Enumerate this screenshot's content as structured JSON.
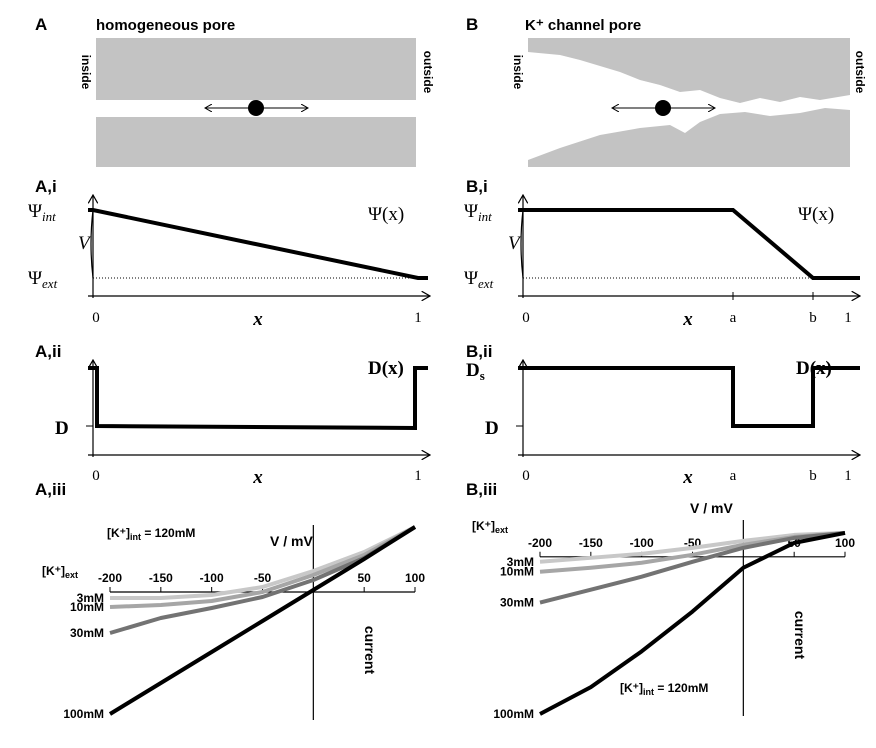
{
  "panels": {
    "A": {
      "label": "A",
      "title": "homogeneous pore",
      "inside": "inside",
      "outside": "outside"
    },
    "B": {
      "label": "B",
      "title": "K⁺ channel pore",
      "inside": "inside",
      "outside": "outside"
    },
    "Ai": {
      "label": "A,i",
      "psi_int": {
        "symbol": "Ψ",
        "sub": "int"
      },
      "psi_ext": {
        "symbol": "Ψ",
        "sub": "ext"
      },
      "V": "V",
      "func": "Ψ(x)",
      "x0": "0",
      "x": "x",
      "x1": "1"
    },
    "Bi": {
      "label": "B,i",
      "psi_int": {
        "symbol": "Ψ",
        "sub": "int"
      },
      "psi_ext": {
        "symbol": "Ψ",
        "sub": "ext"
      },
      "V": "V",
      "func": "Ψ(x)",
      "x0": "0",
      "x": "x",
      "xa": "a",
      "xb": "b",
      "x1": "1"
    },
    "Aii": {
      "label": "A,ii",
      "func": "D(x)",
      "D": "D",
      "x0": "0",
      "x": "x",
      "x1": "1"
    },
    "Bii": {
      "label": "B,ii",
      "Ds": {
        "symbol": "D",
        "sub": "s"
      },
      "func": "D(x)",
      "D": "D",
      "x0": "0",
      "x": "x",
      "xa": "a",
      "xb": "b",
      "x1": "1"
    }
  },
  "chart_data": [
    {
      "type": "line",
      "label": "A,iii",
      "x_label": "V / mV",
      "y_label": "current",
      "annotation_int": {
        "pre": "[K⁺]",
        "sub": "int",
        "post": " = 120mM"
      },
      "annotation_ext": {
        "pre": "[K⁺]",
        "sub": "ext"
      },
      "x": [
        -200,
        -150,
        -100,
        -50,
        0,
        50,
        100
      ],
      "xlim": [
        -200,
        100
      ],
      "xticks": [
        -200,
        -150,
        -100,
        -50,
        50,
        100
      ],
      "ylim": [
        -1.28,
        0.67
      ],
      "series": [
        {
          "name": "3mM",
          "color": "#c8c8c8",
          "values": [
            -0.06,
            -0.06,
            -0.03,
            0.05,
            0.21,
            0.4,
            0.65
          ]
        },
        {
          "name": "10mM",
          "color": "#a6a6a6",
          "values": [
            -0.15,
            -0.13,
            -0.09,
            0,
            0.17,
            0.37,
            0.65
          ]
        },
        {
          "name": "30mM",
          "color": "#737373",
          "values": [
            -0.41,
            -0.26,
            -0.16,
            -0.05,
            0.12,
            0.34,
            0.65
          ]
        },
        {
          "name": "100mM",
          "color": "#000000",
          "values": [
            -1.22,
            -0.91,
            -0.6,
            -0.29,
            0.02,
            0.33,
            0.65
          ]
        }
      ]
    },
    {
      "type": "line",
      "label": "B,iii",
      "x_label": "V / mV",
      "y_label": "current",
      "annotation_int": {
        "pre": "[K⁺]",
        "sub": "int",
        "post": " = 120mM"
      },
      "annotation_ext": {
        "pre": "[K⁺]",
        "sub": "ext"
      },
      "x": [
        -200,
        -150,
        -100,
        -50,
        0,
        50,
        100
      ],
      "xlim": [
        -200,
        100
      ],
      "xticks": [
        -200,
        -150,
        -100,
        -50,
        50,
        100
      ],
      "ylim": [
        -1.6,
        0.37
      ],
      "series": [
        {
          "name": "3mM",
          "color": "#c8c8c8",
          "values": [
            -0.05,
            -0.01,
            0.03,
            0.09,
            0.16,
            0.22,
            0.24
          ]
        },
        {
          "name": "10mM",
          "color": "#a6a6a6",
          "values": [
            -0.15,
            -0.11,
            -0.06,
            0.02,
            0.12,
            0.2,
            0.24
          ]
        },
        {
          "name": "30mM",
          "color": "#737373",
          "values": [
            -0.46,
            -0.33,
            -0.2,
            -0.05,
            0.09,
            0.19,
            0.24
          ]
        },
        {
          "name": "100mM",
          "color": "#000000",
          "values": [
            -1.58,
            -1.31,
            -0.95,
            -0.55,
            -0.11,
            0.14,
            0.24
          ]
        }
      ]
    }
  ]
}
